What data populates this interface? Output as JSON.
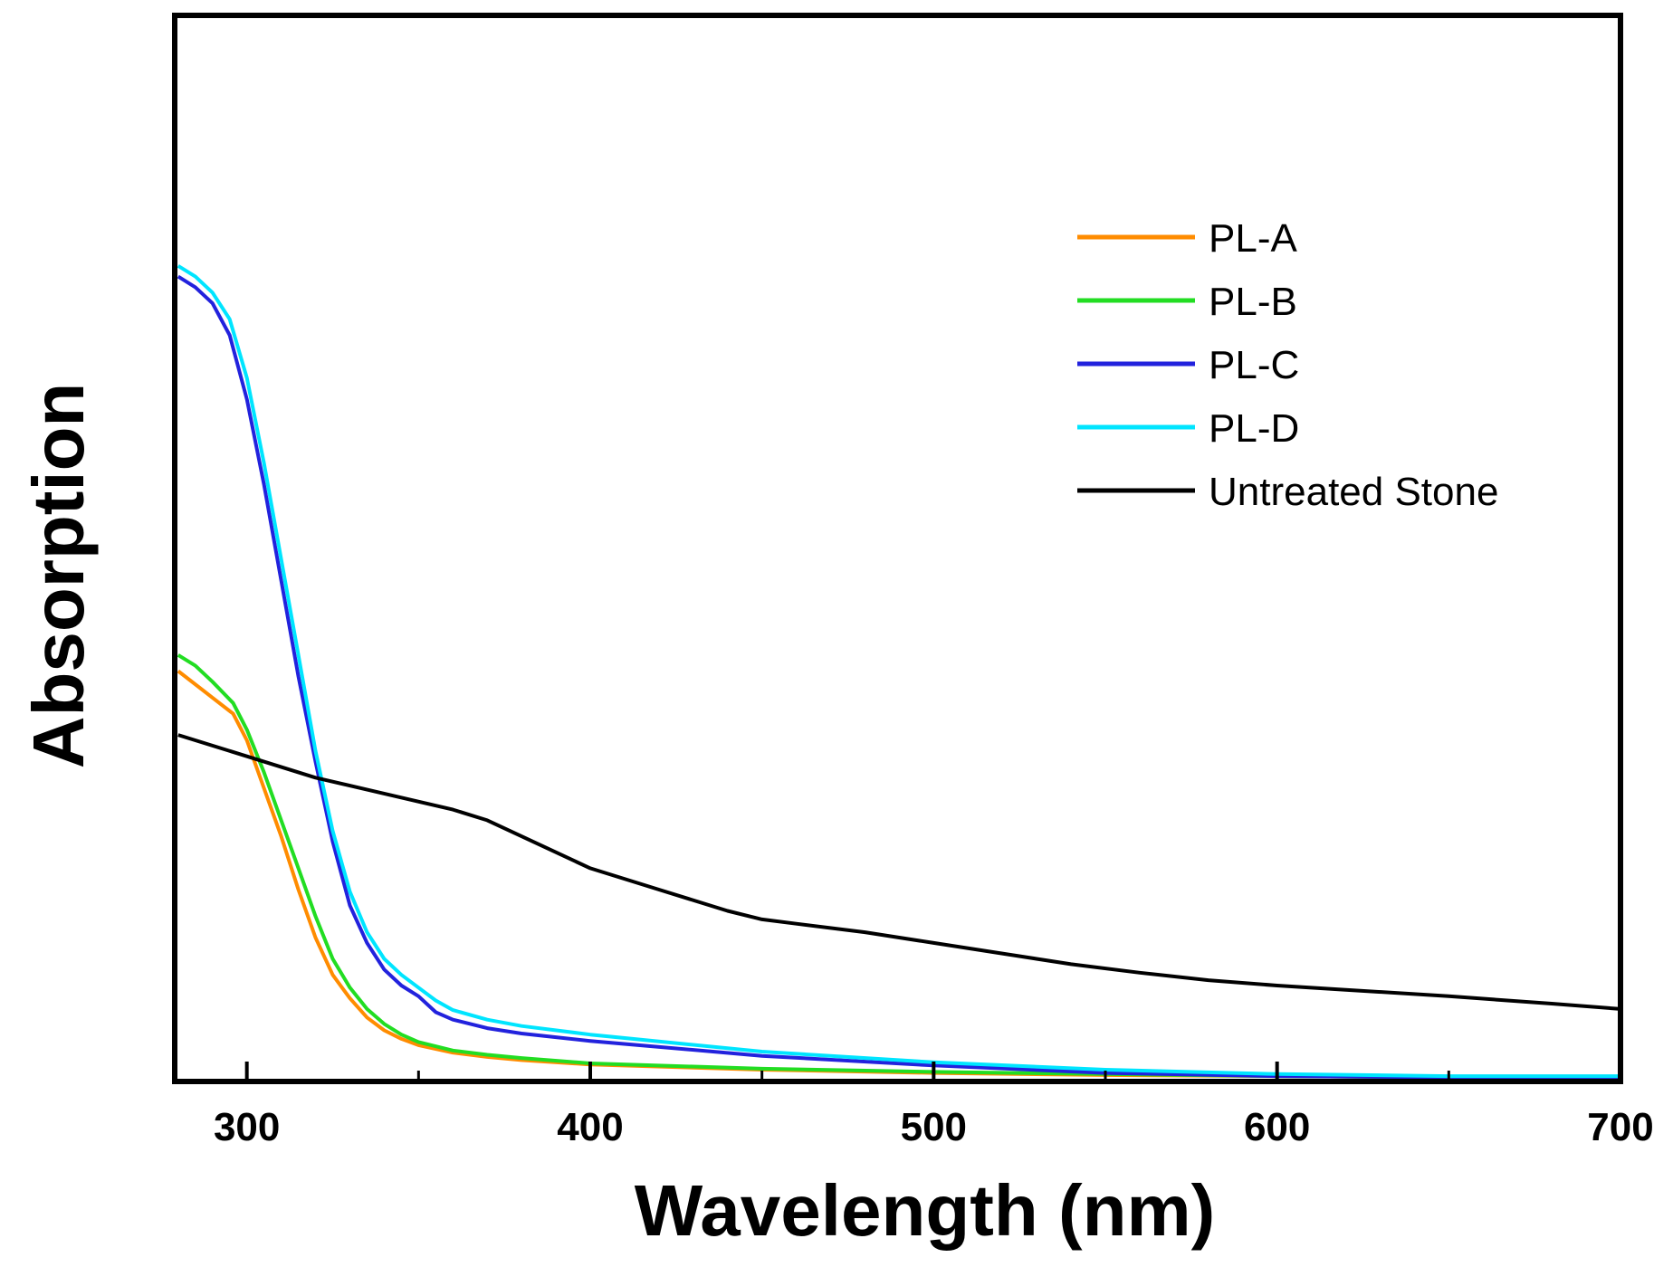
{
  "chart_data": {
    "type": "line",
    "title": "",
    "xlabel": "Wavelength (nm)",
    "ylabel": "Absorption",
    "xlim": [
      279,
      700
    ],
    "ylim": [
      0,
      1
    ],
    "x_ticks": [
      300,
      400,
      500,
      600,
      700
    ],
    "x_tick_labels": [
      "300",
      "400",
      "500",
      "600",
      "700"
    ],
    "y_ticks_shown": false,
    "grid": false,
    "legend_position": "top-right",
    "series": [
      {
        "name": "PL-A",
        "color": "#ff8c00",
        "x": [
          280,
          290,
          296,
          300,
          305,
          310,
          315,
          320,
          325,
          330,
          335,
          340,
          345,
          350,
          360,
          370,
          380,
          400,
          450,
          500,
          550,
          600,
          650,
          700
        ],
        "y": [
          0.385,
          0.36,
          0.345,
          0.32,
          0.275,
          0.23,
          0.18,
          0.135,
          0.1,
          0.078,
          0.06,
          0.048,
          0.04,
          0.034,
          0.027,
          0.023,
          0.02,
          0.016,
          0.011,
          0.008,
          0.006,
          0.005,
          0.004,
          0.004
        ]
      },
      {
        "name": "PL-B",
        "color": "#22dd22",
        "x": [
          280,
          285,
          290,
          296,
          300,
          305,
          310,
          315,
          320,
          325,
          330,
          335,
          340,
          345,
          350,
          360,
          370,
          380,
          400,
          450,
          500,
          550,
          600,
          650,
          700
        ],
        "y": [
          0.4,
          0.39,
          0.375,
          0.355,
          0.33,
          0.29,
          0.245,
          0.2,
          0.155,
          0.115,
          0.088,
          0.068,
          0.054,
          0.044,
          0.037,
          0.029,
          0.025,
          0.022,
          0.017,
          0.012,
          0.009,
          0.007,
          0.005,
          0.004,
          0.004
        ]
      },
      {
        "name": "PL-C",
        "color": "#2222dd",
        "x": [
          280,
          285,
          290,
          295,
          300,
          305,
          310,
          315,
          320,
          325,
          330,
          335,
          340,
          345,
          350,
          355,
          360,
          370,
          380,
          400,
          450,
          500,
          550,
          600,
          650,
          700
        ],
        "y": [
          0.755,
          0.745,
          0.73,
          0.7,
          0.64,
          0.56,
          0.47,
          0.38,
          0.3,
          0.225,
          0.165,
          0.13,
          0.105,
          0.09,
          0.08,
          0.065,
          0.058,
          0.05,
          0.045,
          0.038,
          0.024,
          0.015,
          0.008,
          0.005,
          0.004,
          0.004
        ]
      },
      {
        "name": "PL-D",
        "color": "#00e5ff",
        "x": [
          280,
          285,
          290,
          295,
          300,
          305,
          310,
          315,
          320,
          325,
          330,
          335,
          340,
          345,
          350,
          355,
          360,
          370,
          380,
          400,
          450,
          500,
          550,
          600,
          650,
          700
        ],
        "y": [
          0.765,
          0.755,
          0.74,
          0.715,
          0.66,
          0.58,
          0.49,
          0.4,
          0.31,
          0.235,
          0.178,
          0.14,
          0.115,
          0.1,
          0.088,
          0.076,
          0.067,
          0.058,
          0.052,
          0.044,
          0.028,
          0.018,
          0.011,
          0.007,
          0.005,
          0.005
        ]
      },
      {
        "name": "Untreated Stone",
        "color": "#000000",
        "x": [
          280,
          300,
          320,
          340,
          360,
          370,
          380,
          400,
          420,
          440,
          450,
          460,
          480,
          500,
          520,
          540,
          560,
          580,
          600,
          620,
          650,
          680,
          700
        ],
        "y": [
          0.325,
          0.305,
          0.285,
          0.27,
          0.255,
          0.245,
          0.23,
          0.2,
          0.18,
          0.16,
          0.152,
          0.148,
          0.14,
          0.13,
          0.12,
          0.11,
          0.102,
          0.095,
          0.09,
          0.086,
          0.08,
          0.073,
          0.068
        ]
      }
    ]
  }
}
